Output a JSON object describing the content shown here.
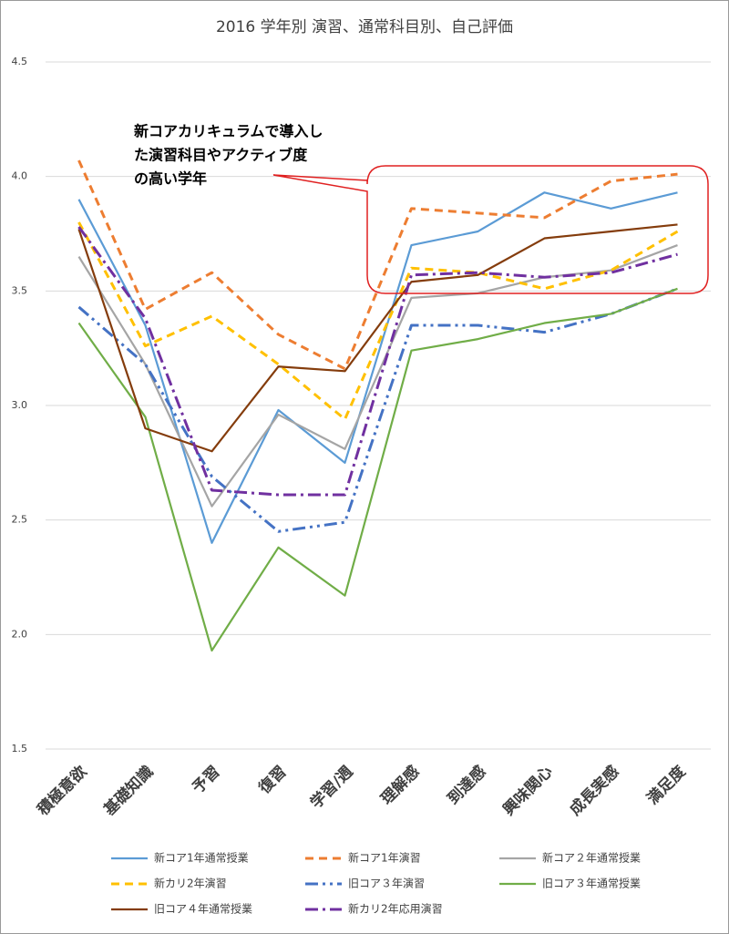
{
  "chart_data": {
    "type": "line",
    "title": "2016  学年別   演習、通常科目別、自己評価",
    "annotation": [
      "新コアカリキュラムで導入し",
      "た演習科目やアクティブ度",
      "の高い学年"
    ],
    "categories": [
      "積極意欲",
      "基礎知識",
      "予習",
      "復習",
      "学習/週",
      "理解感",
      "到達感",
      "興味関心",
      "成長実感",
      "満足度"
    ],
    "ylim": [
      1.5,
      4.5
    ],
    "yticks": [
      1.5,
      {
        "value": 2,
        "label": "2.0"
      },
      2.5,
      {
        "value": 3,
        "label": "3.0"
      },
      3.5,
      {
        "value": 4,
        "label": "4.0"
      },
      4.5
    ],
    "grid": true,
    "legend": "bottom",
    "series": [
      {
        "name": "新コア1年通常授業",
        "color": "#5b9bd5",
        "line_style": "solid",
        "values": [
          3.9,
          3.35,
          2.4,
          2.98,
          2.75,
          3.7,
          3.76,
          3.93,
          3.86,
          3.93
        ]
      },
      {
        "name": "新コア1年演習",
        "color": "#ed7d31",
        "line_style": "dashed",
        "values": [
          4.07,
          3.42,
          3.58,
          3.31,
          3.16,
          3.86,
          3.84,
          3.82,
          3.98,
          4.01
        ]
      },
      {
        "name": "新コア２年通常授業",
        "color": "#a5a5a5",
        "line_style": "solid",
        "values": [
          3.65,
          3.18,
          2.56,
          2.96,
          2.81,
          3.47,
          3.49,
          3.56,
          3.59,
          3.7
        ]
      },
      {
        "name": "新カリ2年演習",
        "color": "#ffc000",
        "line_style": "dashed",
        "values": [
          3.8,
          3.26,
          3.39,
          3.18,
          2.94,
          3.6,
          3.58,
          3.51,
          3.59,
          3.76
        ]
      },
      {
        "name": "旧コア３年演習",
        "color": "#4472c4",
        "line_style": "dash-dot-dot",
        "values": [
          3.43,
          3.18,
          2.69,
          2.45,
          2.49,
          3.35,
          3.35,
          3.32,
          3.4,
          3.51
        ]
      },
      {
        "name": "旧コア３年通常授業",
        "color": "#70ad47",
        "line_style": "solid",
        "values": [
          3.36,
          2.95,
          1.93,
          2.38,
          2.17,
          3.24,
          3.29,
          3.36,
          3.4,
          3.51
        ]
      },
      {
        "name": "旧コア４年通常授業",
        "color": "#843c0c",
        "line_style": "solid",
        "values": [
          3.77,
          2.9,
          2.8,
          3.17,
          3.15,
          3.54,
          3.57,
          3.73,
          3.76,
          3.79
        ]
      },
      {
        "name": "新カリ2年応用演習",
        "color": "#7030a0",
        "line_style": "dash-dot",
        "values": [
          3.78,
          3.38,
          2.63,
          2.61,
          2.61,
          3.57,
          3.58,
          3.56,
          3.58,
          3.66
        ]
      }
    ]
  }
}
